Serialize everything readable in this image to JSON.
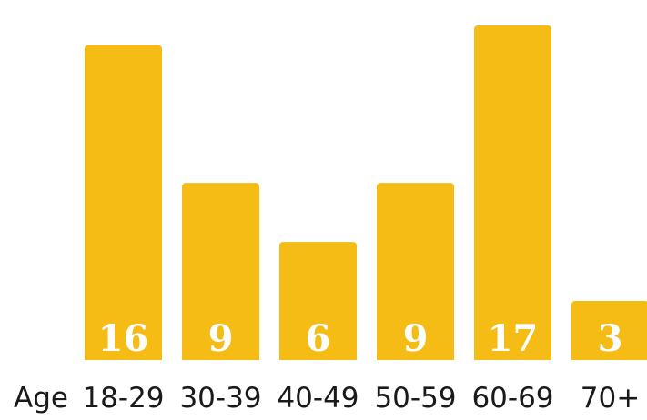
{
  "chart_data": {
    "type": "bar",
    "axis_prefix": "Age",
    "categories": [
      "18-29",
      "30-39",
      "40-49",
      "50-59",
      "60-69",
      "70+"
    ],
    "values": [
      16,
      9,
      6,
      9,
      17,
      3
    ],
    "bar_color": "#F5BC15",
    "value_label_color": "#FFFFFF",
    "grid": false,
    "legend": "none"
  }
}
